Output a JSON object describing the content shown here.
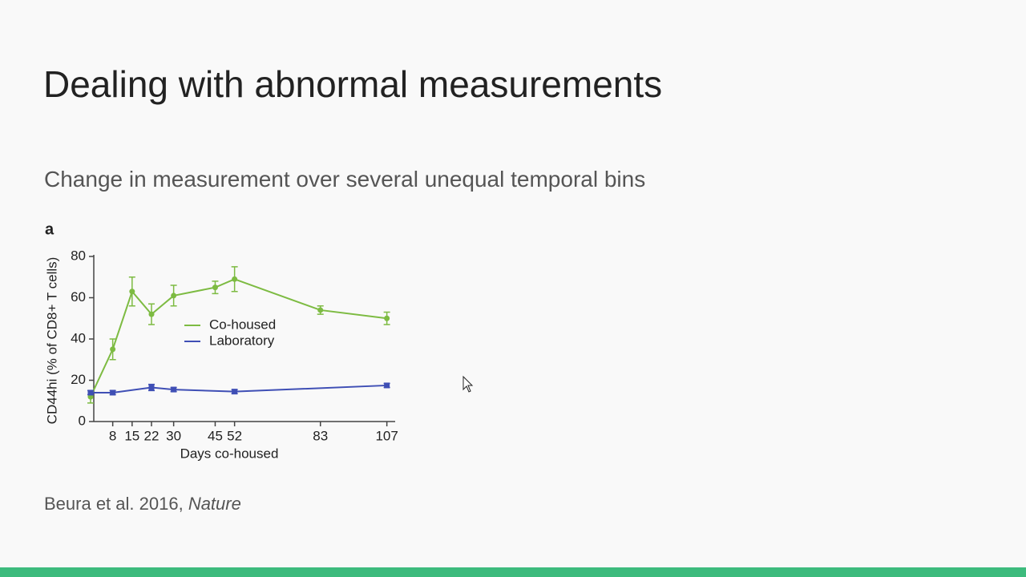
{
  "slide": {
    "title": "Dealing with abnormal measurements",
    "subtitle": "Change in measurement over several unequal temporal bins",
    "citation_authors": "Beura et al. 2016,",
    "citation_journal": "Nature"
  },
  "chart_data": {
    "type": "line",
    "panel_label": "a",
    "x_label": "Days co-housed",
    "y_label": "CD44hi (% of CD8+ T cells)",
    "xlim": [
      0,
      110
    ],
    "xticks": [
      8,
      15,
      22,
      30,
      45,
      52,
      83,
      107
    ],
    "ylim": [
      0,
      80
    ],
    "yticks": [
      0,
      20,
      40,
      60,
      80
    ],
    "legend": "upper center",
    "series": [
      {
        "name": "Co-housed",
        "color": "#7dbb42",
        "marker": "circle",
        "x": [
          0,
          8,
          15,
          22,
          30,
          45,
          52,
          83,
          107
        ],
        "values": [
          12,
          35,
          63,
          52,
          61,
          65,
          69,
          54,
          50
        ],
        "errors": [
          3,
          5,
          7,
          5,
          5,
          3,
          6,
          2,
          3
        ]
      },
      {
        "name": "Laboratory",
        "color": "#3f4fb5",
        "marker": "square",
        "x": [
          0,
          8,
          22,
          30,
          52,
          107
        ],
        "values": [
          14,
          14,
          16.5,
          15.5,
          14.5,
          17.5
        ],
        "errors": [
          1,
          1,
          1.5,
          1,
          1,
          1
        ]
      }
    ]
  }
}
